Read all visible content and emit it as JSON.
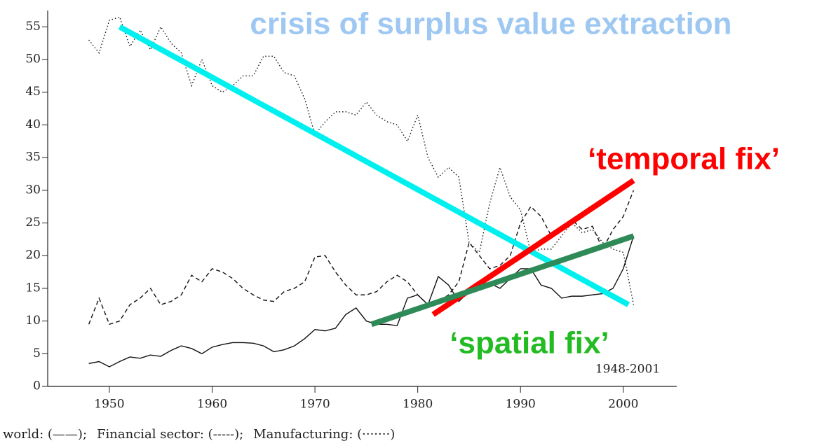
{
  "chart_data": {
    "type": "line",
    "title": "crisis of surplus value extraction",
    "title_color": "#9ec8f2",
    "x": [
      1948,
      1949,
      1950,
      1951,
      1952,
      1953,
      1954,
      1955,
      1956,
      1957,
      1958,
      1959,
      1960,
      1961,
      1962,
      1963,
      1964,
      1965,
      1966,
      1967,
      1968,
      1969,
      1970,
      1971,
      1972,
      1973,
      1974,
      1975,
      1976,
      1977,
      1978,
      1979,
      1980,
      1981,
      1982,
      1983,
      1984,
      1985,
      1986,
      1987,
      1988,
      1989,
      1990,
      1991,
      1992,
      1993,
      1994,
      1995,
      1996,
      1997,
      1998,
      1999,
      2000,
      2001
    ],
    "series": [
      {
        "name": "world: (——);",
        "color": "#111",
        "values": [
          3.5,
          3.8,
          3,
          3.8,
          4.5,
          4.3,
          4.8,
          4.6,
          5.5,
          6.2,
          5.8,
          5,
          6,
          6.4,
          6.7,
          6.7,
          6.6,
          6.2,
          5.3,
          5.6,
          6.2,
          7.3,
          8.7,
          8.5,
          8.9,
          11,
          12,
          10,
          9.5,
          9.5,
          9.3,
          13.5,
          14,
          12.5,
          16.8,
          15.5,
          13,
          14.5,
          15.5,
          15.8,
          15,
          16.5,
          18,
          18,
          15.5,
          15,
          13.5,
          13.8,
          13.8,
          14,
          14.2,
          15,
          18,
          23
        ]
      },
      {
        "name": "Financial sector: (-----);",
        "color": "#111",
        "values": [
          9.5,
          13.5,
          9.5,
          10,
          12.5,
          13.5,
          15,
          12.5,
          13,
          14,
          17,
          16,
          18,
          17.5,
          16.5,
          15,
          14,
          13.2,
          13,
          14.5,
          15,
          16,
          19.8,
          20,
          17.5,
          15.5,
          14,
          14,
          14.5,
          16,
          17,
          16,
          14,
          12.5,
          13,
          14,
          16,
          22,
          20,
          18,
          18.5,
          20,
          25,
          27.5,
          26,
          23,
          24,
          25.5,
          24,
          24.5,
          21,
          24,
          26,
          30
        ]
      },
      {
        "name": "Manufacturing: (·······)",
        "color": "#111",
        "values": [
          53,
          51,
          56,
          56.5,
          52,
          54.5,
          51.5,
          55,
          52.5,
          51,
          46,
          50,
          46,
          45,
          46,
          47.5,
          47.5,
          50.5,
          50.5,
          48,
          47.5,
          44,
          38.5,
          40.5,
          42,
          42,
          41.5,
          43.5,
          41.5,
          40.5,
          40,
          37.5,
          41.5,
          35,
          32,
          33.5,
          32,
          22,
          20.5,
          28,
          33.5,
          29,
          27,
          20.5,
          21,
          21,
          23,
          25,
          23.5,
          24,
          22,
          21,
          20.5,
          12.5
        ]
      }
    ],
    "trend_lines": [
      {
        "color": "#00f0f0",
        "x": [
          1951,
          2000.5
        ],
        "y": [
          55,
          12.5
        ]
      },
      {
        "color": "#ff0000",
        "x": [
          1981.5,
          2001
        ],
        "y": [
          11,
          31.5
        ]
      },
      {
        "color": "#2e8b57",
        "x": [
          1975.5,
          2001
        ],
        "y": [
          9.5,
          23
        ]
      }
    ],
    "annotations": [
      {
        "text": "‘temporal fix’",
        "color": "#ff0000"
      },
      {
        "text": "‘spatial fix’",
        "color": "#22bb22"
      },
      {
        "text": "1948-2001",
        "color": "#222"
      }
    ],
    "xlim": [
      1944,
      2005.2
    ],
    "ylim": [
      0,
      57.5
    ],
    "xticks": [
      1950,
      1960,
      1970,
      1980,
      1990,
      2000
    ],
    "yticks": [
      0,
      5,
      10,
      15,
      20,
      25,
      30,
      35,
      40,
      45,
      50,
      55
    ]
  }
}
